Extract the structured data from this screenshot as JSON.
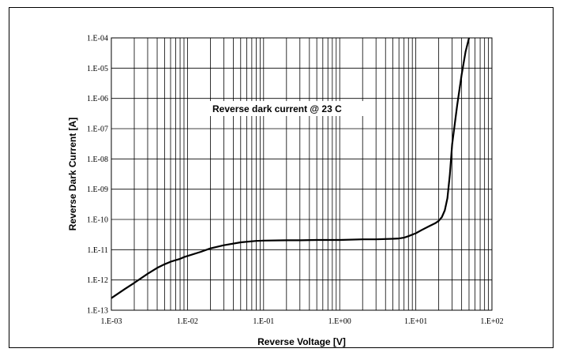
{
  "chart_data": {
    "type": "line",
    "title": "",
    "xlabel": "Reverse Voltage [V]",
    "ylabel": "Reverse Dark Current [A]",
    "x_scale": "log",
    "y_scale": "log",
    "xlim": [
      0.001,
      100
    ],
    "ylim": [
      1e-13,
      0.0001
    ],
    "grid": true,
    "legend": "none",
    "x_tick_labels": [
      "1.E-03",
      "1.E-02",
      "1.E-01",
      "1.E+00",
      "1.E+01",
      "1.E+02"
    ],
    "y_tick_labels": [
      "1.E-13",
      "1.E-12",
      "1.E-11",
      "1.E-10",
      "1.E-09",
      "1.E-08",
      "1.E-07",
      "1.E-06",
      "1.E-05",
      "1.E-04"
    ],
    "annotation": "Reverse dark current @ 23 C",
    "line_color": "#000000",
    "series": [
      {
        "x": [
          0.001,
          0.0015,
          0.002,
          0.003,
          0.004,
          0.005,
          0.006,
          0.007,
          0.008,
          0.009,
          0.01,
          0.015,
          0.02,
          0.03,
          0.05,
          0.08,
          0.1,
          0.2,
          0.3,
          0.5,
          1,
          2,
          3,
          5,
          6,
          7,
          8,
          10,
          12,
          15,
          18,
          20,
          22,
          24,
          26,
          28,
          30,
          35,
          40,
          45,
          50
        ],
        "y": [
          2.5e-13,
          5e-13,
          8e-13,
          1.6e-12,
          2.5e-12,
          3.3e-12,
          4e-12,
          4.5e-12,
          5e-12,
          5.7e-12,
          6.2e-12,
          8.5e-12,
          1.1e-11,
          1.4e-11,
          1.75e-11,
          1.95e-11,
          2e-11,
          2.05e-11,
          2.05e-11,
          2.1e-11,
          2.1e-11,
          2.2e-11,
          2.2e-11,
          2.3e-11,
          2.35e-11,
          2.5e-11,
          2.8e-11,
          3.5e-11,
          4.5e-11,
          6e-11,
          7.5e-11,
          9e-11,
          1.2e-10,
          2e-10,
          5e-10,
          3e-09,
          3e-08,
          6e-07,
          6e-06,
          3.5e-05,
          0.0001
        ]
      }
    ]
  }
}
